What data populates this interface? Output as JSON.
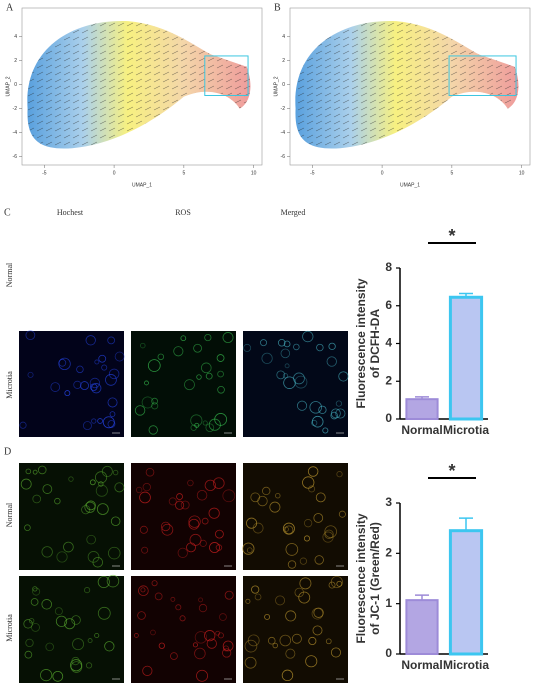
{
  "umap_panels": [
    {
      "label": "A",
      "xlabel": "UMAP_1",
      "ylabel": "UMAP_2",
      "xlim": [
        -6.6,
        10.6
      ],
      "ylim": [
        -6.7,
        6.4
      ],
      "xticks": [
        -5,
        0,
        5,
        10
      ],
      "yticks": [
        4,
        2,
        0,
        -2,
        -4,
        -6
      ]
    },
    {
      "label": "B",
      "xlabel": "UMAP_1",
      "ylabel": "UMAP_2",
      "xlim": [
        -6.6,
        10.6
      ],
      "ylim": [
        -6.7,
        6.4
      ],
      "xticks": [
        -5,
        0,
        5,
        10
      ],
      "yticks": [
        4,
        2,
        0,
        -2,
        -4,
        -6
      ]
    }
  ],
  "panel_c": {
    "label": "C",
    "columns": [
      "Hochest",
      "ROS",
      "Merged"
    ],
    "rows": [
      "Normal",
      "Microtia"
    ]
  },
  "panel_d": {
    "label": "D",
    "rows": [
      "Normal",
      "Microtia"
    ]
  },
  "chart_data": [
    {
      "type": "bar",
      "ylabel": [
        "Fluorescence intensity",
        "of DCFH-DA"
      ],
      "categories": [
        "Normal",
        "Microtia"
      ],
      "values": [
        1.05,
        6.45
      ],
      "errors": [
        0.12,
        0.2
      ],
      "colors": [
        "#b3a6e3",
        "#b9c6f2"
      ],
      "edge_colors": [
        "#9d8bd8",
        "#3cc6f0"
      ],
      "ylim": [
        0,
        8
      ],
      "yticks": [
        0,
        2,
        4,
        6,
        8
      ],
      "significance": "*"
    },
    {
      "type": "bar",
      "ylabel": [
        "Fluorescence intensity",
        "of JC-1 (Green/Red)"
      ],
      "categories": [
        "Normal",
        "Microtia"
      ],
      "values": [
        1.07,
        2.45
      ],
      "errors": [
        0.1,
        0.25
      ],
      "colors": [
        "#b3a6e3",
        "#b9c6f2"
      ],
      "edge_colors": [
        "#9d8bd8",
        "#3cc6f0"
      ],
      "ylim": [
        0,
        3
      ],
      "yticks": [
        0,
        1,
        2,
        3
      ],
      "significance": "*"
    }
  ]
}
